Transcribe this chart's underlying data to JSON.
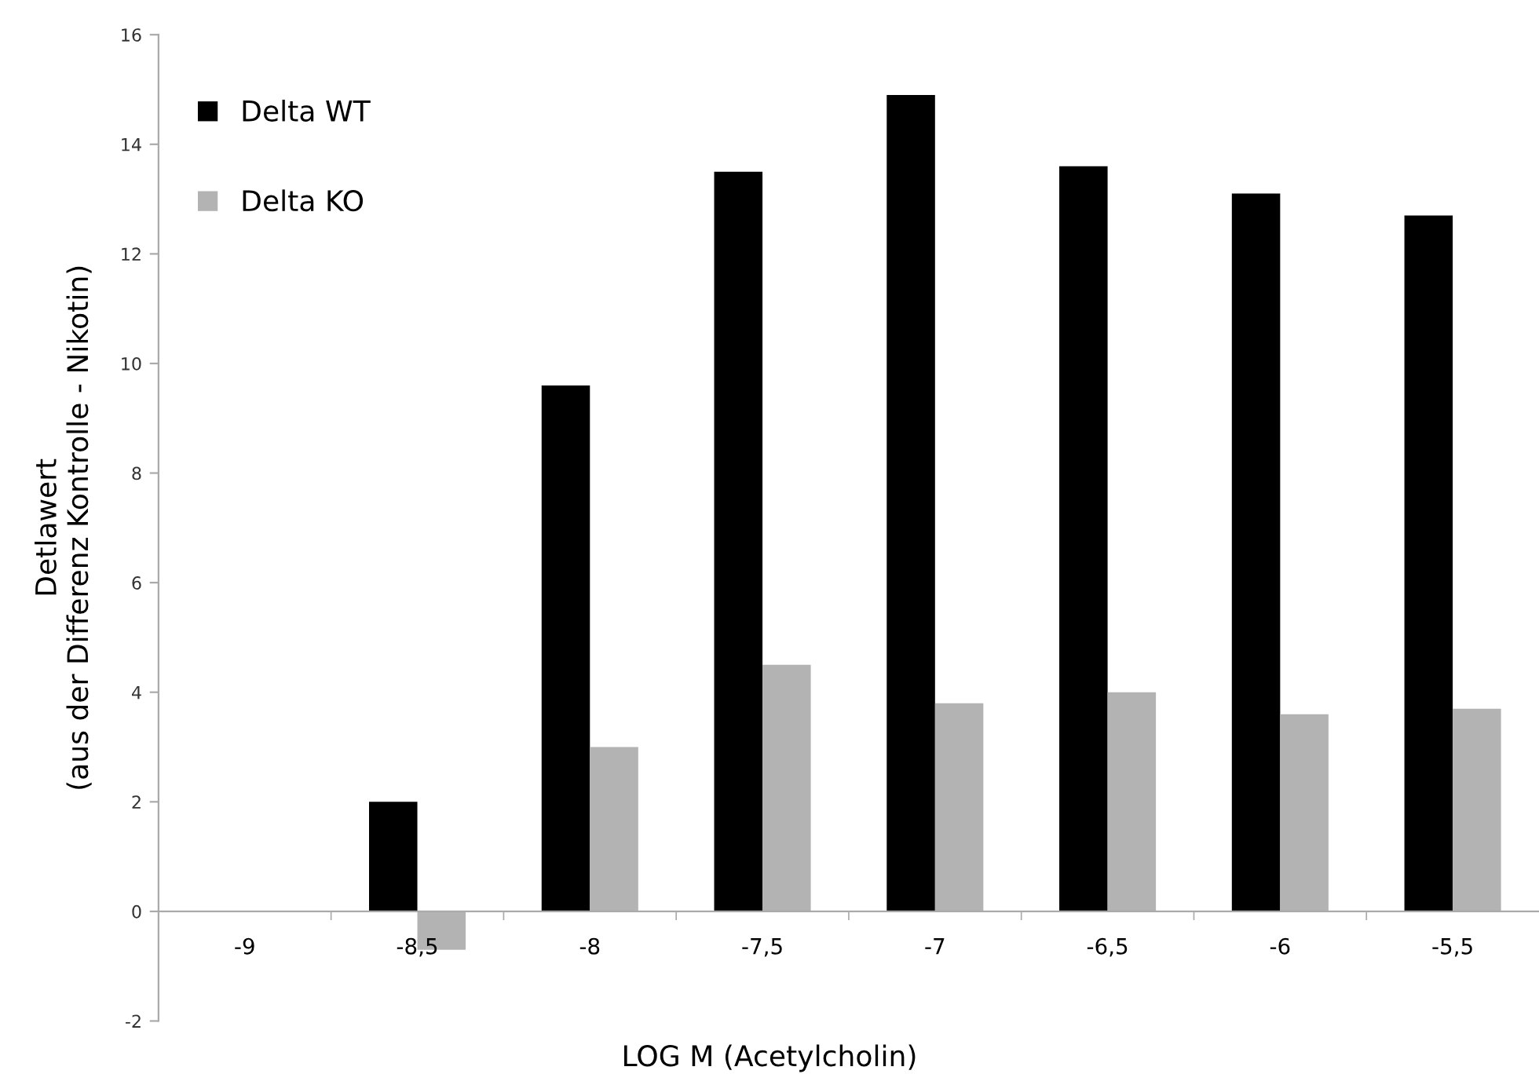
{
  "chart_data": {
    "type": "bar",
    "xlabel": "LOG M (Acetylcholin)",
    "ylabel": "Detlawert\n(aus der Differenz Kontrolle - Nikotin)",
    "categories": [
      "-9",
      "-8,5",
      "-8",
      "-7,5",
      "-7",
      "-6,5",
      "-6",
      "-5,5"
    ],
    "series": [
      {
        "name": "Delta WT",
        "color": "#000000",
        "values": [
          null,
          2.0,
          9.6,
          13.5,
          14.9,
          13.6,
          13.1,
          12.7
        ]
      },
      {
        "name": "Delta KO",
        "color": "#b3b3b3",
        "values": [
          null,
          -0.7,
          3.0,
          4.5,
          3.8,
          4.0,
          3.6,
          3.7
        ]
      }
    ],
    "ylim": [
      -2,
      16
    ],
    "yticks": [
      -2,
      0,
      2,
      4,
      6,
      8,
      10,
      12,
      14,
      16
    ],
    "grid": false,
    "legend": "top left"
  }
}
